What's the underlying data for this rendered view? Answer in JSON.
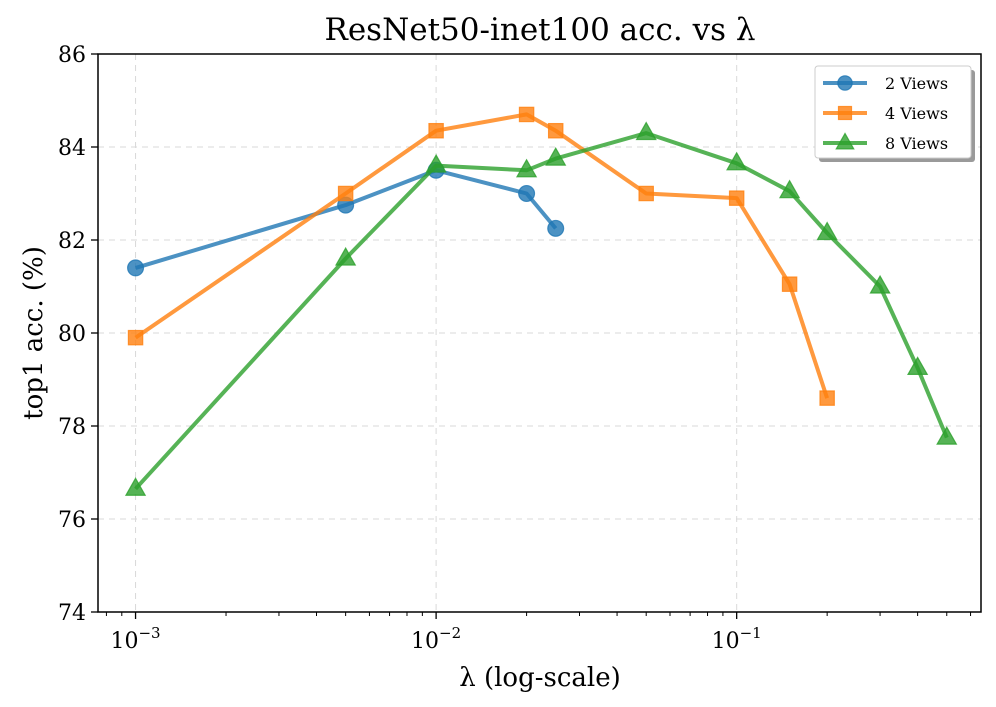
{
  "chart_data": {
    "type": "line",
    "title": "ResNet50-inet100 acc. vs λ",
    "xlabel": "λ (log-scale)",
    "ylabel": "top1 acc. (%)",
    "xscale": "log",
    "xlim": [
      0.00075,
      0.65
    ],
    "ylim": [
      74,
      86
    ],
    "xticks": [
      {
        "value": 0.001,
        "base": "10",
        "exp": "−3"
      },
      {
        "value": 0.01,
        "base": "10",
        "exp": "−2"
      },
      {
        "value": 0.1,
        "base": "10",
        "exp": "−1"
      }
    ],
    "yticks": [
      74,
      76,
      78,
      80,
      82,
      84,
      86
    ],
    "grid": true,
    "legend_position": "top-right",
    "series": [
      {
        "name": "2 Views",
        "color": "#1f77b4",
        "marker": "circle",
        "x": [
          0.001,
          0.005,
          0.01,
          0.02,
          0.025
        ],
        "y": [
          81.4,
          82.75,
          83.5,
          83.0,
          82.25
        ]
      },
      {
        "name": "4 Views",
        "color": "#ff7f0e",
        "marker": "square",
        "x": [
          0.001,
          0.005,
          0.01,
          0.02,
          0.025,
          0.05,
          0.1,
          0.15,
          0.2
        ],
        "y": [
          79.9,
          83.0,
          84.35,
          84.7,
          84.35,
          83.0,
          82.9,
          81.05,
          78.6
        ]
      },
      {
        "name": "8 Views",
        "color": "#2ca02c",
        "marker": "triangle",
        "x": [
          0.001,
          0.005,
          0.01,
          0.02,
          0.025,
          0.05,
          0.1,
          0.15,
          0.2,
          0.3,
          0.4,
          0.5
        ],
        "y": [
          76.65,
          81.6,
          83.6,
          83.5,
          83.75,
          84.3,
          83.65,
          83.05,
          82.15,
          81.0,
          79.25,
          77.75
        ]
      }
    ]
  }
}
